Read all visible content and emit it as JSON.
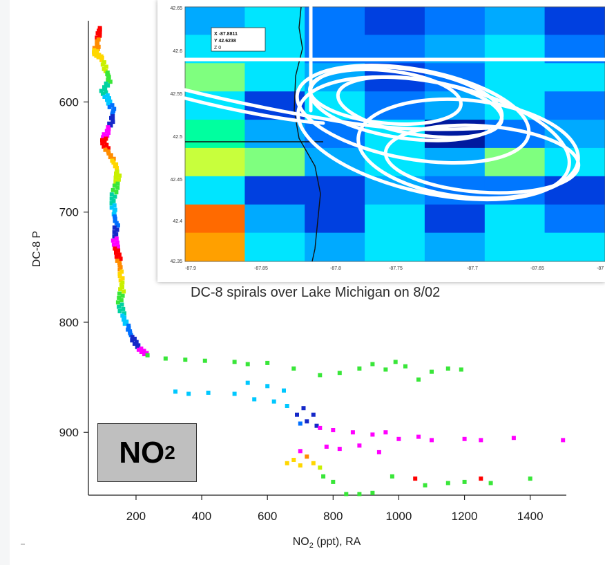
{
  "chart_data": {
    "type": "scatter",
    "title": "",
    "xlabel": "NO₂ (ppt), RA",
    "ylabel": "DC-8 P",
    "xlim": [
      55,
      1510
    ],
    "ylim": [
      957,
      525
    ],
    "y_inverted": true,
    "xticks": [
      200,
      400,
      600,
      800,
      1000,
      1200,
      1400
    ],
    "yticks": [
      600,
      700,
      800,
      900
    ],
    "grid": false,
    "legend": "none",
    "marker": "square",
    "color_by_altitude_palette": [
      "#ff0000",
      "#ff8c00",
      "#ffd700",
      "#c8f000",
      "#39e639",
      "#00d2a0",
      "#00c8ff",
      "#0070ff",
      "#1428c8",
      "#ff00ff"
    ],
    "profile": [
      {
        "x": 90,
        "y": 533
      },
      {
        "x": 85,
        "y": 540
      },
      {
        "x": 80,
        "y": 550
      },
      {
        "x": 75,
        "y": 556
      },
      {
        "x": 95,
        "y": 560
      },
      {
        "x": 110,
        "y": 572
      },
      {
        "x": 120,
        "y": 580
      },
      {
        "x": 100,
        "y": 590
      },
      {
        "x": 115,
        "y": 598
      },
      {
        "x": 130,
        "y": 608
      },
      {
        "x": 125,
        "y": 618
      },
      {
        "x": 110,
        "y": 628
      },
      {
        "x": 100,
        "y": 636
      },
      {
        "x": 115,
        "y": 645
      },
      {
        "x": 135,
        "y": 655
      },
      {
        "x": 145,
        "y": 665
      },
      {
        "x": 140,
        "y": 676
      },
      {
        "x": 128,
        "y": 688
      },
      {
        "x": 132,
        "y": 700
      },
      {
        "x": 140,
        "y": 712
      },
      {
        "x": 135,
        "y": 724
      },
      {
        "x": 142,
        "y": 735
      },
      {
        "x": 150,
        "y": 746
      },
      {
        "x": 155,
        "y": 758
      },
      {
        "x": 158,
        "y": 770
      },
      {
        "x": 150,
        "y": 782
      },
      {
        "x": 160,
        "y": 794
      },
      {
        "x": 175,
        "y": 805
      },
      {
        "x": 190,
        "y": 815
      },
      {
        "x": 210,
        "y": 824
      },
      {
        "x": 235,
        "y": 830
      }
    ],
    "points": [
      {
        "x": 290,
        "y": 833,
        "c": "#39e639"
      },
      {
        "x": 350,
        "y": 834,
        "c": "#39e639"
      },
      {
        "x": 410,
        "y": 835,
        "c": "#39e639"
      },
      {
        "x": 500,
        "y": 836,
        "c": "#39e639"
      },
      {
        "x": 540,
        "y": 838,
        "c": "#39e639"
      },
      {
        "x": 600,
        "y": 837,
        "c": "#39e639"
      },
      {
        "x": 680,
        "y": 842,
        "c": "#39e639"
      },
      {
        "x": 760,
        "y": 848,
        "c": "#39e639"
      },
      {
        "x": 820,
        "y": 846,
        "c": "#39e639"
      },
      {
        "x": 880,
        "y": 842,
        "c": "#39e639"
      },
      {
        "x": 920,
        "y": 838,
        "c": "#39e639"
      },
      {
        "x": 960,
        "y": 843,
        "c": "#39e639"
      },
      {
        "x": 990,
        "y": 836,
        "c": "#39e639"
      },
      {
        "x": 1020,
        "y": 840,
        "c": "#39e639"
      },
      {
        "x": 1060,
        "y": 852,
        "c": "#39e639"
      },
      {
        "x": 1100,
        "y": 845,
        "c": "#39e639"
      },
      {
        "x": 1150,
        "y": 842,
        "c": "#39e639"
      },
      {
        "x": 1190,
        "y": 843,
        "c": "#39e639"
      },
      {
        "x": 320,
        "y": 863,
        "c": "#00c8ff"
      },
      {
        "x": 360,
        "y": 865,
        "c": "#00c8ff"
      },
      {
        "x": 420,
        "y": 864,
        "c": "#00c8ff"
      },
      {
        "x": 500,
        "y": 865,
        "c": "#00c8ff"
      },
      {
        "x": 540,
        "y": 855,
        "c": "#00c8ff"
      },
      {
        "x": 560,
        "y": 870,
        "c": "#00c8ff"
      },
      {
        "x": 600,
        "y": 858,
        "c": "#00c8ff"
      },
      {
        "x": 620,
        "y": 872,
        "c": "#00c8ff"
      },
      {
        "x": 650,
        "y": 862,
        "c": "#00c8ff"
      },
      {
        "x": 660,
        "y": 876,
        "c": "#00c8ff"
      },
      {
        "x": 690,
        "y": 884,
        "c": "#1428c8"
      },
      {
        "x": 710,
        "y": 878,
        "c": "#1428c8"
      },
      {
        "x": 720,
        "y": 890,
        "c": "#1428c8"
      },
      {
        "x": 740,
        "y": 884,
        "c": "#1428c8"
      },
      {
        "x": 750,
        "y": 894,
        "c": "#1428c8"
      },
      {
        "x": 700,
        "y": 892,
        "c": "#0070ff"
      },
      {
        "x": 760,
        "y": 896,
        "c": "#ff00ff"
      },
      {
        "x": 800,
        "y": 898,
        "c": "#ff00ff"
      },
      {
        "x": 860,
        "y": 900,
        "c": "#ff00ff"
      },
      {
        "x": 920,
        "y": 902,
        "c": "#ff00ff"
      },
      {
        "x": 960,
        "y": 900,
        "c": "#ff00ff"
      },
      {
        "x": 1000,
        "y": 906,
        "c": "#ff00ff"
      },
      {
        "x": 1060,
        "y": 904,
        "c": "#ff00ff"
      },
      {
        "x": 1100,
        "y": 907,
        "c": "#ff00ff"
      },
      {
        "x": 1200,
        "y": 906,
        "c": "#ff00ff"
      },
      {
        "x": 1250,
        "y": 907,
        "c": "#ff00ff"
      },
      {
        "x": 1350,
        "y": 905,
        "c": "#ff00ff"
      },
      {
        "x": 1500,
        "y": 907,
        "c": "#ff00ff"
      },
      {
        "x": 780,
        "y": 913,
        "c": "#ff00ff"
      },
      {
        "x": 820,
        "y": 915,
        "c": "#ff00ff"
      },
      {
        "x": 880,
        "y": 912,
        "c": "#ff00ff"
      },
      {
        "x": 940,
        "y": 918,
        "c": "#ff00ff"
      },
      {
        "x": 700,
        "y": 917,
        "c": "#ff00ff"
      },
      {
        "x": 720,
        "y": 922,
        "c": "#ff8c00"
      },
      {
        "x": 680,
        "y": 925,
        "c": "#ffd700"
      },
      {
        "x": 700,
        "y": 930,
        "c": "#ffd700"
      },
      {
        "x": 740,
        "y": 928,
        "c": "#ffd700"
      },
      {
        "x": 660,
        "y": 928,
        "c": "#ffd700"
      },
      {
        "x": 760,
        "y": 932,
        "c": "#c8f000"
      },
      {
        "x": 770,
        "y": 940,
        "c": "#39e639"
      },
      {
        "x": 800,
        "y": 945,
        "c": "#39e639"
      },
      {
        "x": 840,
        "y": 956,
        "c": "#39e639"
      },
      {
        "x": 880,
        "y": 956,
        "c": "#39e639"
      },
      {
        "x": 920,
        "y": 955,
        "c": "#39e639"
      },
      {
        "x": 980,
        "y": 940,
        "c": "#39e639"
      },
      {
        "x": 1050,
        "y": 942,
        "c": "#ff0000"
      },
      {
        "x": 1080,
        "y": 948,
        "c": "#39e639"
      },
      {
        "x": 1150,
        "y": 946,
        "c": "#39e639"
      },
      {
        "x": 1200,
        "y": 945,
        "c": "#39e639"
      },
      {
        "x": 1250,
        "y": 942,
        "c": "#ff0000"
      },
      {
        "x": 1280,
        "y": 946,
        "c": "#39e639"
      },
      {
        "x": 1400,
        "y": 942,
        "c": "#39e639"
      }
    ]
  },
  "inset": {
    "caption": "DC-8 spirals over Lake Michigan on 8/02",
    "readout": [
      "X -87.8811",
      "Y 42.6238",
      "Z 0"
    ],
    "x_tick_labels": [
      "-87.9",
      "-87.85",
      "-87.8",
      "-87.75",
      "-87.7",
      "-87.65",
      "-87"
    ],
    "y_tick_labels": [
      "42.65",
      "42.6",
      "42.55",
      "42.5",
      "42.45",
      "42.4",
      "42.35"
    ]
  },
  "species_label": {
    "main": "NO",
    "sub": "2"
  }
}
